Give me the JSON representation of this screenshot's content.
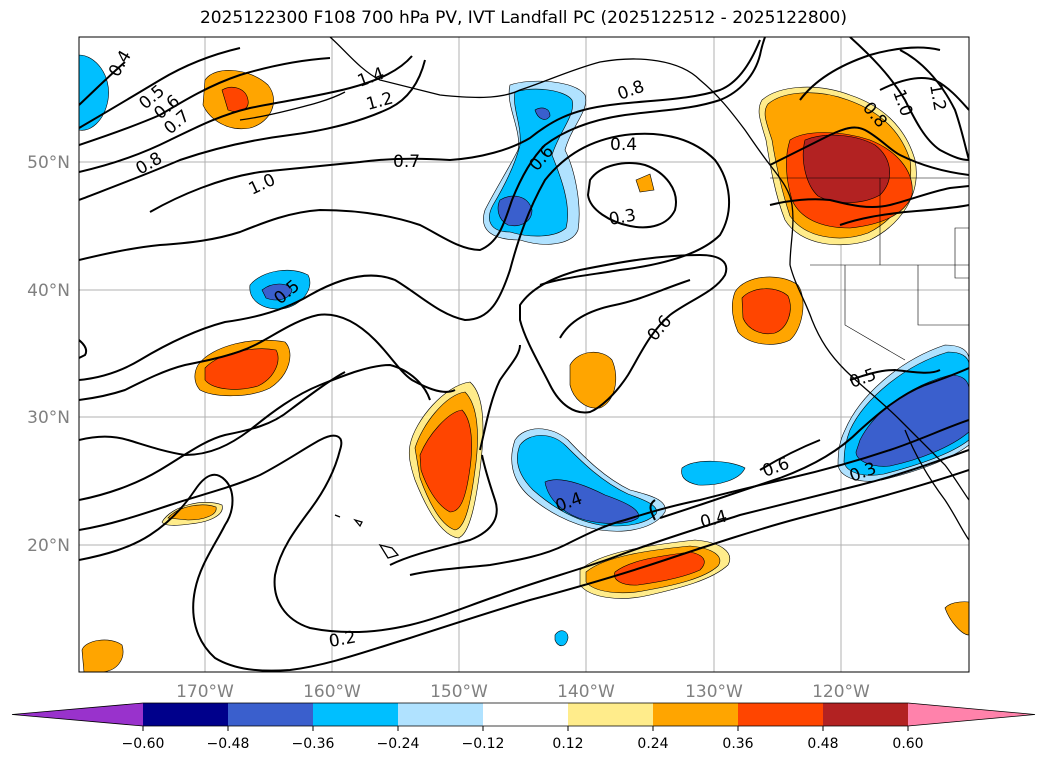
{
  "title": "2025122300 F108 700 hPa PV, IVT Landfall PC (2025122512 - 2025122800)",
  "axes": {
    "lat_ticks": [
      "50°N",
      "40°N",
      "30°N",
      "20°N"
    ],
    "lon_ticks": [
      "170°W",
      "160°W",
      "150°W",
      "140°W",
      "130°W",
      "120°W"
    ]
  },
  "colorbar": {
    "ticks": [
      "−0.60",
      "−0.48",
      "−0.36",
      "−0.24",
      "−0.12",
      "0.12",
      "0.24",
      "0.36",
      "0.48",
      "0.60"
    ],
    "colors": [
      "#9932cc",
      "#00008b",
      "#3a5fcd",
      "#00bfff",
      "#b0e2ff",
      "#ffffff",
      "#ffec8b",
      "#ffa500",
      "#ff4500",
      "#b22222",
      "#ff82ab"
    ]
  },
  "contour_labels": [
    "0.4",
    "0.5",
    "0.6",
    "0.7",
    "0.8",
    "1.0",
    "1.4",
    "1.2",
    "0.7",
    "0.6",
    "0.8",
    "0.4",
    "0.3",
    "0.8",
    "1.0",
    "1.2",
    "0.5",
    "0.6",
    "0.5",
    "0.6",
    "0.3",
    "0.4",
    "0.4",
    "0.2"
  ]
}
